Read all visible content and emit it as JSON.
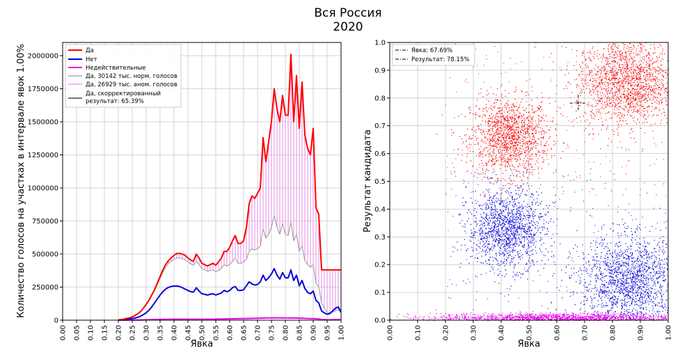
{
  "figure": {
    "title_line1": "Вся Россия",
    "title_line2": "2020"
  },
  "colors": {
    "da": "#ff0000",
    "net": "#0000dd",
    "invalid": "#ee00ee",
    "norm": "#999999",
    "anom": "#e68ae6",
    "corrected": "#222222",
    "grid": "#c8c8c8"
  },
  "chart_data": [
    {
      "type": "line",
      "xlabel": "Явка",
      "ylabel": "Количество голосов на участках в интервале явок 1.00%",
      "xlim": [
        0,
        1
      ],
      "ylim": [
        0,
        2100000
      ],
      "grid": true,
      "legend_position": "top-left",
      "x_ticks": [
        "0.00",
        "0.05",
        "0.10",
        "0.15",
        "0.20",
        "0.25",
        "0.30",
        "0.35",
        "0.40",
        "0.45",
        "0.50",
        "0.55",
        "0.60",
        "0.65",
        "0.70",
        "0.75",
        "0.80",
        "0.85",
        "0.90",
        "0.95",
        "1.00"
      ],
      "y_ticks": [
        "0",
        "250000",
        "500000",
        "750000",
        "1000000",
        "1250000",
        "1500000",
        "1750000",
        "2000000"
      ],
      "x": [
        0.2,
        0.21,
        0.22,
        0.23,
        0.24,
        0.25,
        0.26,
        0.27,
        0.28,
        0.29,
        0.3,
        0.31,
        0.32,
        0.33,
        0.34,
        0.35,
        0.36,
        0.37,
        0.38,
        0.39,
        0.4,
        0.41,
        0.42,
        0.43,
        0.44,
        0.45,
        0.46,
        0.47,
        0.48,
        0.49,
        0.5,
        0.51,
        0.52,
        0.53,
        0.54,
        0.55,
        0.56,
        0.57,
        0.58,
        0.59,
        0.6,
        0.61,
        0.62,
        0.63,
        0.64,
        0.65,
        0.66,
        0.67,
        0.68,
        0.69,
        0.7,
        0.71,
        0.72,
        0.73,
        0.74,
        0.75,
        0.76,
        0.77,
        0.78,
        0.79,
        0.8,
        0.81,
        0.82,
        0.83,
        0.84,
        0.85,
        0.86,
        0.87,
        0.88,
        0.89,
        0.9,
        0.91,
        0.92,
        0.93,
        0.94,
        0.95,
        0.96,
        0.97,
        0.98,
        0.99,
        1.0
      ],
      "series": [
        {
          "name": "Да",
          "color": "#ff0000",
          "values": [
            2000,
            5000,
            8000,
            13000,
            18000,
            24000,
            35000,
            48000,
            65000,
            90000,
            120000,
            150000,
            190000,
            230000,
            280000,
            330000,
            380000,
            420000,
            450000,
            470000,
            490000,
            505000,
            505000,
            500000,
            490000,
            470000,
            455000,
            445000,
            500000,
            470000,
            430000,
            420000,
            410000,
            420000,
            430000,
            415000,
            440000,
            470000,
            520000,
            520000,
            550000,
            600000,
            640000,
            580000,
            580000,
            600000,
            700000,
            880000,
            940000,
            920000,
            960000,
            1000000,
            1380000,
            1200000,
            1350000,
            1500000,
            1750000,
            1600000,
            1500000,
            1700000,
            1550000,
            1550000,
            2010000,
            1500000,
            1850000,
            1450000,
            1800000,
            1400000,
            1300000,
            1250000,
            1450000,
            850000,
            800000,
            380000,
            380000,
            380000,
            380000,
            380000,
            380000,
            380000,
            380000
          ]
        },
        {
          "name": "Нет",
          "color": "#0000dd",
          "values": [
            1000,
            2000,
            4000,
            6000,
            9000,
            12000,
            16000,
            22000,
            30000,
            42000,
            56000,
            75000,
            100000,
            130000,
            160000,
            190000,
            215000,
            235000,
            248000,
            255000,
            258000,
            258000,
            255000,
            245000,
            235000,
            225000,
            215000,
            212000,
            245000,
            220000,
            200000,
            195000,
            190000,
            195000,
            200000,
            190000,
            198000,
            205000,
            225000,
            215000,
            225000,
            245000,
            255000,
            225000,
            225000,
            230000,
            260000,
            290000,
            275000,
            265000,
            270000,
            290000,
            340000,
            300000,
            320000,
            350000,
            390000,
            340000,
            310000,
            360000,
            320000,
            320000,
            380000,
            300000,
            340000,
            260000,
            300000,
            240000,
            210000,
            200000,
            220000,
            150000,
            130000,
            70000,
            55000,
            45000,
            50000,
            70000,
            90000,
            100000,
            60000
          ]
        },
        {
          "name": "Недействительные",
          "color": "#ee00ee",
          "values": [
            0,
            0,
            100,
            200,
            300,
            500,
            800,
            1200,
            1600,
            2200,
            2800,
            3400,
            4000,
            4600,
            5200,
            5800,
            6200,
            6600,
            7000,
            7200,
            7400,
            7500,
            7500,
            7400,
            7300,
            7200,
            7100,
            7000,
            7500,
            7200,
            7000,
            7100,
            7200,
            7400,
            7600,
            7800,
            8200,
            8600,
            9000,
            9400,
            9800,
            10300,
            10800,
            11300,
            11800,
            12300,
            12800,
            13300,
            13800,
            14300,
            14800,
            15300,
            15800,
            16300,
            16800,
            17300,
            17800,
            17300,
            16800,
            17800,
            16800,
            16300,
            17300,
            15800,
            16300,
            14800,
            15300,
            13800,
            12800,
            11800,
            12300,
            9800,
            8800,
            4800,
            3800,
            2800,
            2500,
            3000,
            3500,
            4000,
            2500
          ]
        },
        {
          "name": "Да, 30142 тыс. норм. голосов",
          "color": "#999999",
          "values": [
            2000,
            5000,
            8000,
            13000,
            18000,
            24000,
            35000,
            48000,
            65000,
            90000,
            118000,
            148000,
            185000,
            222000,
            268000,
            315000,
            360000,
            400000,
            428000,
            445000,
            460000,
            470000,
            470000,
            465000,
            455000,
            440000,
            425000,
            415000,
            445000,
            420000,
            390000,
            380000,
            370000,
            375000,
            380000,
            365000,
            375000,
            390000,
            420000,
            410000,
            420000,
            445000,
            470000,
            430000,
            430000,
            440000,
            460000,
            520000,
            540000,
            530000,
            540000,
            560000,
            690000,
            620000,
            650000,
            700000,
            790000,
            700000,
            650000,
            730000,
            650000,
            640000,
            740000,
            600000,
            650000,
            520000,
            560000,
            450000,
            420000,
            400000,
            420000,
            280000,
            250000,
            130000,
            90000,
            60000,
            55000,
            60000,
            70000,
            80000,
            60000
          ]
        }
      ],
      "legend": [
        {
          "label": "Да",
          "color": "#ff0000"
        },
        {
          "label": "Нет",
          "color": "#0000dd"
        },
        {
          "label": "Недействительные",
          "color": "#ee00ee"
        },
        {
          "label": "Да, 30142 тыс. норм. голосов",
          "color": "#999999"
        },
        {
          "label": "Да, 26929 тыс. аном. голосов",
          "color": "#e68ae6"
        },
        {
          "label_line1": "Да, скорректированный",
          "label_line2": "результат: 65.39%",
          "color": "#222222"
        }
      ]
    },
    {
      "type": "scatter",
      "xlabel": "Явка",
      "ylabel": "Результат кандидата",
      "xlim": [
        0,
        1
      ],
      "ylim": [
        0,
        1
      ],
      "grid": true,
      "legend_position": "top-left",
      "x_ticks": [
        "0.00",
        "0.10",
        "0.20",
        "0.30",
        "0.40",
        "0.50",
        "0.60",
        "0.70",
        "0.80",
        "0.90",
        "1.00"
      ],
      "y_ticks": [
        "0.0",
        "0.1",
        "0.2",
        "0.3",
        "0.4",
        "0.5",
        "0.6",
        "0.7",
        "0.8",
        "0.9",
        "1.0"
      ],
      "clusters": [
        {
          "series": "Да",
          "color": "#ff0000",
          "center_x": 0.43,
          "center_y": 0.66,
          "spread_x": 0.07,
          "spread_y": 0.07
        },
        {
          "series": "Да",
          "color": "#ff0000",
          "center_x": 0.85,
          "center_y": 0.86,
          "spread_x": 0.09,
          "spread_y": 0.08
        },
        {
          "series": "Нет",
          "color": "#0000dd",
          "center_x": 0.42,
          "center_y": 0.33,
          "spread_x": 0.07,
          "spread_y": 0.07
        },
        {
          "series": "Нет",
          "color": "#0000dd",
          "center_x": 0.86,
          "center_y": 0.14,
          "spread_x": 0.09,
          "spread_y": 0.08
        },
        {
          "series": "Недействительные",
          "color": "#ee00ee",
          "center_x": 0.6,
          "center_y": 0.01,
          "spread_x": 0.22,
          "spread_y": 0.008
        }
      ],
      "marker": {
        "turnout": 0.6769,
        "result": 0.7815
      },
      "legend": [
        {
          "label": "Явка: 67.69%"
        },
        {
          "label": "Результат: 78.15%"
        }
      ]
    }
  ]
}
